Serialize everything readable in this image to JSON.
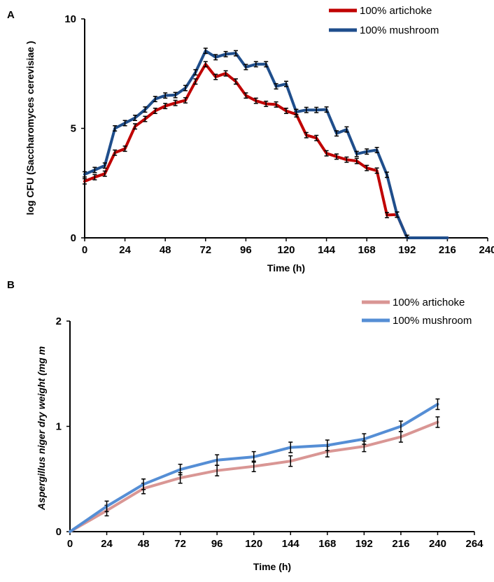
{
  "chart_data": [
    {
      "panel_label": "A",
      "type": "line",
      "xlabel": "Time (h)",
      "ylabel": "log CFU (Saccharomyces cerevisiae )",
      "xlim": [
        0,
        240
      ],
      "ylim": [
        0,
        10
      ],
      "xticks": [
        0,
        24,
        48,
        72,
        96,
        120,
        144,
        168,
        192,
        216,
        240
      ],
      "yticks": [
        0,
        5,
        10
      ],
      "grid": false,
      "legend_position": "top-right",
      "x": [
        0,
        6,
        12,
        18,
        24,
        30,
        36,
        42,
        48,
        54,
        60,
        66,
        72,
        78,
        84,
        90,
        96,
        102,
        108,
        114,
        120,
        126,
        132,
        138,
        144,
        150,
        156,
        162,
        168,
        174,
        180,
        186,
        192,
        198,
        204,
        210,
        216
      ],
      "series": [
        {
          "name": "100% artichoke",
          "color": "#c00000",
          "error": 0.12,
          "values": [
            2.58,
            2.77,
            2.93,
            3.89,
            4.07,
            5.09,
            5.43,
            5.8,
            6.02,
            6.16,
            6.28,
            7.14,
            7.93,
            7.35,
            7.51,
            7.14,
            6.5,
            6.26,
            6.12,
            6.09,
            5.8,
            5.64,
            4.69,
            4.56,
            3.86,
            3.71,
            3.57,
            3.51,
            3.19,
            3.07,
            1.04,
            1.06,
            0,
            0,
            0,
            0,
            0
          ]
        },
        {
          "name": "100% mushroom",
          "color": "#1f4e8c",
          "error": 0.12,
          "values": [
            2.9,
            3.1,
            3.3,
            5.0,
            5.24,
            5.48,
            5.86,
            6.34,
            6.5,
            6.52,
            6.84,
            7.56,
            8.54,
            8.25,
            8.39,
            8.43,
            7.8,
            7.93,
            7.93,
            6.92,
            7.03,
            5.75,
            5.84,
            5.84,
            5.86,
            4.77,
            4.95,
            3.83,
            3.94,
            4.01,
            2.88,
            1.06,
            0,
            0,
            0,
            0,
            0
          ]
        }
      ]
    },
    {
      "panel_label": "B",
      "type": "line",
      "xlabel": "Time (h)",
      "ylabel": "Aspergillus niger  dry weight (mg m",
      "xlim": [
        0,
        264
      ],
      "ylim": [
        0,
        2
      ],
      "xticks": [
        0,
        24,
        48,
        72,
        96,
        120,
        144,
        168,
        192,
        216,
        240,
        264
      ],
      "yticks": [
        0,
        1,
        2
      ],
      "grid": false,
      "legend_position": "top-right",
      "x": [
        0,
        24,
        48,
        72,
        96,
        120,
        144,
        168,
        192,
        216,
        240
      ],
      "series": [
        {
          "name": "100% artichoke",
          "color": "#d99694",
          "error": 0.05,
          "values": [
            0,
            0.2,
            0.41,
            0.51,
            0.58,
            0.62,
            0.67,
            0.76,
            0.81,
            0.9,
            1.04
          ]
        },
        {
          "name": "100% mushroom",
          "color": "#558ed5",
          "error": 0.05,
          "values": [
            0,
            0.24,
            0.45,
            0.59,
            0.68,
            0.71,
            0.8,
            0.82,
            0.88,
            1.0,
            1.21
          ]
        }
      ]
    }
  ]
}
